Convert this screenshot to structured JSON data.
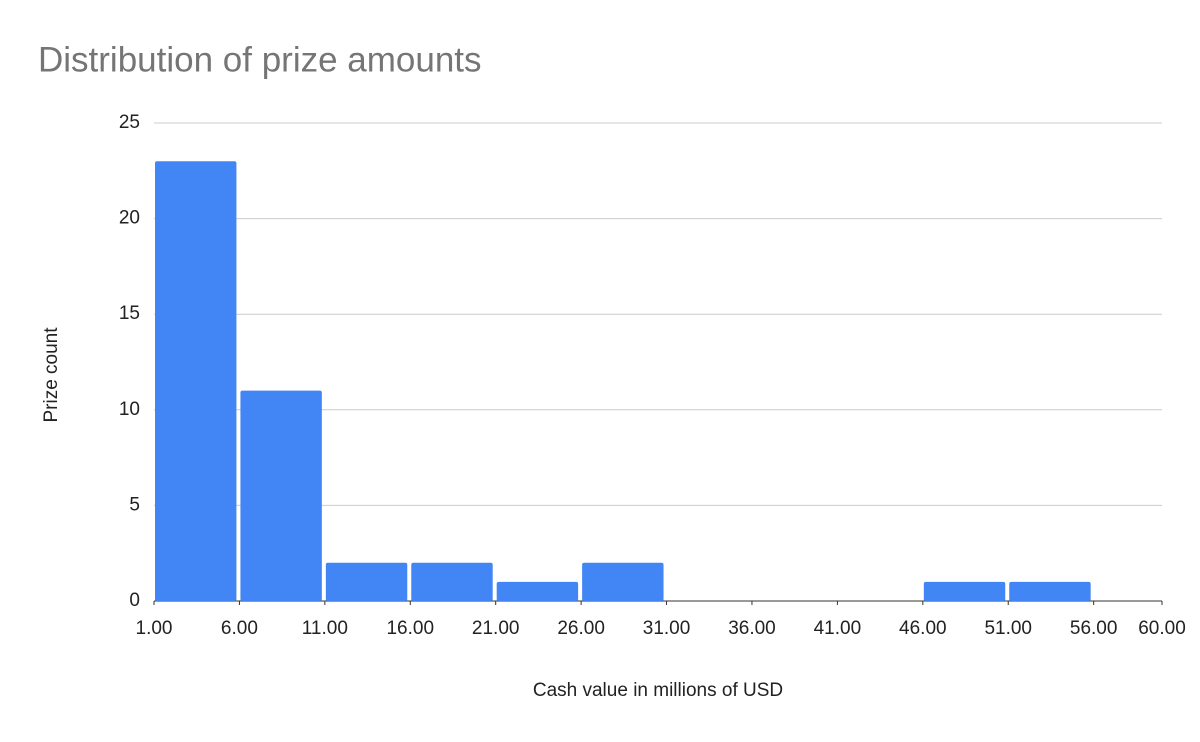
{
  "chart_data": {
    "type": "histogram",
    "title": "Distribution of prize amounts",
    "x_label": "Cash value in millions of USD",
    "y_label": "Prize count",
    "bins": [
      1,
      6,
      11,
      16,
      21,
      26,
      31,
      36,
      41,
      46,
      51,
      56,
      60
    ],
    "values": [
      23,
      11,
      2,
      2,
      1,
      2,
      0,
      0,
      0,
      1,
      1,
      0
    ],
    "color": "#4285f4",
    "xlim": [
      1,
      60
    ],
    "xticks": [
      {
        "value": 1,
        "label": "1.00"
      },
      {
        "value": 6,
        "label": "6.00"
      },
      {
        "value": 11,
        "label": "11.00"
      },
      {
        "value": 16,
        "label": "16.00"
      },
      {
        "value": 21,
        "label": "21.00"
      },
      {
        "value": 26,
        "label": "26.00"
      },
      {
        "value": 31,
        "label": "31.00"
      },
      {
        "value": 36,
        "label": "36.00"
      },
      {
        "value": 41,
        "label": "41.00"
      },
      {
        "value": 46,
        "label": "46.00"
      },
      {
        "value": 51,
        "label": "51.00"
      },
      {
        "value": 56,
        "label": "56.00"
      },
      {
        "value": 60,
        "label": "60.00"
      }
    ],
    "ylim": [
      0,
      25
    ],
    "yticks": [
      0,
      5,
      10,
      15,
      20,
      25
    ],
    "grid": true
  }
}
